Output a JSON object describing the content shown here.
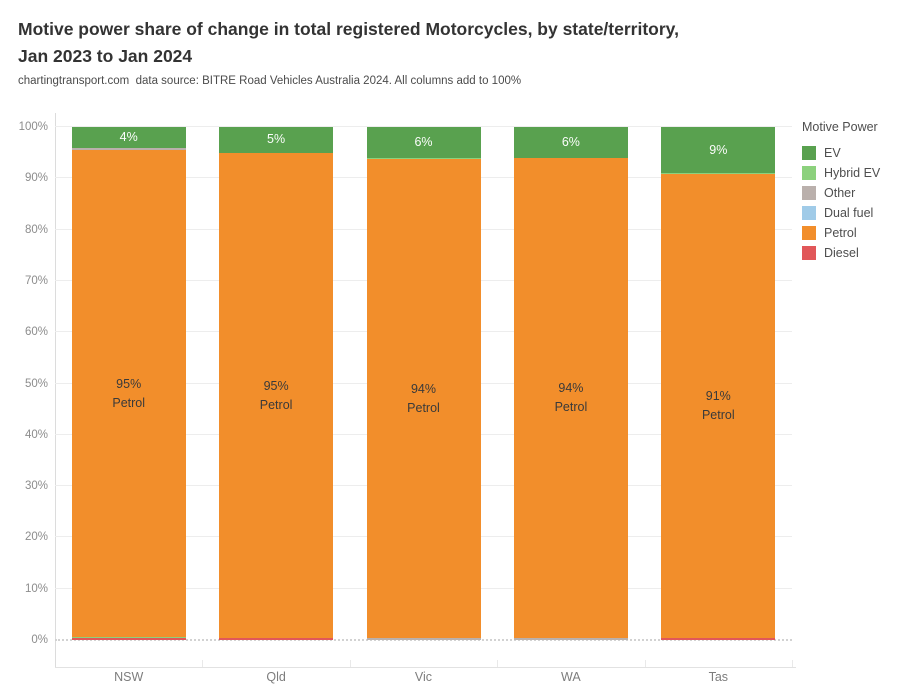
{
  "header": {
    "title_line1": "Motive power share of change in total registered Motorcycles, by state/territory,",
    "title_line2": "Jan 2023 to Jan 2024",
    "subtitle": "chartingtransport.com  data source: BITRE Road Vehicles Australia 2024. All columns add to 100%"
  },
  "legend": {
    "title": "Motive Power",
    "items": [
      {
        "label": "EV",
        "color": "#59a14f"
      },
      {
        "label": "Hybrid EV",
        "color": "#8cd17d"
      },
      {
        "label": "Other",
        "color": "#bab0ac"
      },
      {
        "label": "Dual fuel",
        "color": "#a0cbe8"
      },
      {
        "label": "Petrol",
        "color": "#f28e2b"
      },
      {
        "label": "Diesel",
        "color": "#e15759"
      }
    ]
  },
  "axes": {
    "y_ticks": [
      "0%",
      "10%",
      "20%",
      "30%",
      "40%",
      "50%",
      "60%",
      "70%",
      "80%",
      "90%",
      "100%"
    ],
    "x_labels": [
      "NSW",
      "Qld",
      "Vic",
      "WA",
      "Tas"
    ]
  },
  "chart_data": {
    "type": "bar",
    "stacked": true,
    "title": "Motive power share of change in total registered Motorcycles, by state/territory, Jan 2023 to Jan 2024",
    "subtitle": "chartingtransport.com  data source: BITRE Road Vehicles Australia 2024. All columns add to 100%",
    "categories": [
      "NSW",
      "Qld",
      "Vic",
      "WA",
      "Tas"
    ],
    "series": [
      {
        "name": "EV",
        "values": [
          4,
          5,
          6,
          6,
          9
        ]
      },
      {
        "name": "Hybrid EV",
        "values": [
          0.2,
          0,
          0.2,
          0,
          0.2
        ]
      },
      {
        "name": "Other",
        "values": [
          0.5,
          0,
          0.3,
          0.3,
          0
        ]
      },
      {
        "name": "Dual fuel",
        "values": [
          0,
          0,
          0,
          0,
          0
        ]
      },
      {
        "name": "Petrol",
        "values": [
          95,
          94.7,
          93.5,
          93.7,
          90.5
        ]
      },
      {
        "name": "Diesel",
        "values": [
          0.3,
          0.3,
          0,
          0,
          0.3
        ]
      }
    ],
    "bar_value_labels": {
      "EV": [
        "4%",
        "5%",
        "6%",
        "6%",
        "9%"
      ],
      "Petrol": [
        "95%",
        "95%",
        "94%",
        "94%",
        "91%"
      ]
    },
    "xlabel": "",
    "ylabel": "",
    "ylim": [
      0,
      100
    ],
    "y_tick_step": 10,
    "grid": "horizontal",
    "legend_title": "Motive Power",
    "legend_position": "right"
  },
  "render": {
    "stacks": [
      [
        {
          "motive": "EV",
          "pct": 4,
          "label": "4%"
        },
        {
          "motive": "Other",
          "pct": 0.5
        },
        {
          "motive": "Petrol",
          "pct": 95,
          "label": "95%\nPetrol"
        },
        {
          "motive": "Hybrid EV",
          "pct": 0.2
        },
        {
          "motive": "Diesel",
          "pct": 0.3
        }
      ],
      [
        {
          "motive": "EV",
          "pct": 5,
          "label": "5%"
        },
        {
          "motive": "Petrol",
          "pct": 94.7,
          "label": "95%\nPetrol"
        },
        {
          "motive": "Diesel",
          "pct": 0.3
        }
      ],
      [
        {
          "motive": "EV",
          "pct": 6,
          "label": "6%"
        },
        {
          "motive": "Hybrid EV",
          "pct": 0.2
        },
        {
          "motive": "Petrol",
          "pct": 93.5,
          "label": "94%\nPetrol"
        },
        {
          "motive": "Other",
          "pct": 0.3
        }
      ],
      [
        {
          "motive": "EV",
          "pct": 6,
          "label": "6%"
        },
        {
          "motive": "Petrol",
          "pct": 93.7,
          "label": "94%\nPetrol"
        },
        {
          "motive": "Other",
          "pct": 0.3
        }
      ],
      [
        {
          "motive": "EV",
          "pct": 9,
          "label": "9%"
        },
        {
          "motive": "Hybrid EV",
          "pct": 0.2
        },
        {
          "motive": "Petrol",
          "pct": 90.5,
          "label": "91%\nPetrol"
        },
        {
          "motive": "Diesel",
          "pct": 0.3
        }
      ]
    ]
  }
}
